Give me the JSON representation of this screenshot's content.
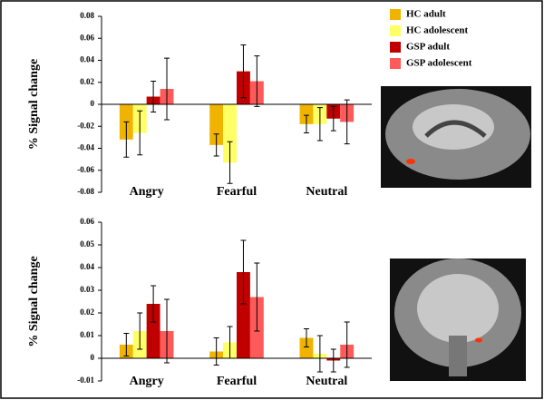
{
  "chart_data": [
    {
      "type": "bar",
      "ylabel": "% Signal change",
      "categories": [
        "Angry",
        "Fearful",
        "Neutral"
      ],
      "ylim": [
        -0.08,
        0.08
      ],
      "yticks": [
        -0.08,
        -0.06,
        -0.04,
        -0.02,
        0,
        0.02,
        0.04,
        0.06,
        0.08
      ],
      "legend": "top-right",
      "series": [
        {
          "name": "HC adult",
          "color": "#f0b400",
          "values": [
            -0.032,
            -0.037,
            -0.018
          ],
          "errors": [
            0.016,
            0.01,
            0.008
          ]
        },
        {
          "name": "HC adolescent",
          "color": "#ffff66",
          "values": [
            -0.026,
            -0.053,
            -0.018
          ],
          "errors": [
            0.02,
            0.019,
            0.015
          ]
        },
        {
          "name": "GSP adult",
          "color": "#c00000",
          "values": [
            0.007,
            0.03,
            -0.013
          ],
          "errors": [
            0.014,
            0.024,
            0.011
          ]
        },
        {
          "name": "GSP adolescent",
          "color": "#ff5a5a",
          "values": [
            0.014,
            0.021,
            -0.016
          ],
          "errors": [
            0.028,
            0.023,
            0.02
          ]
        }
      ]
    },
    {
      "type": "bar",
      "ylabel": "% Signal change",
      "categories": [
        "Angry",
        "Fearful",
        "Neutral"
      ],
      "ylim": [
        -0.01,
        0.06
      ],
      "yticks": [
        -0.01,
        0,
        0.01,
        0.02,
        0.03,
        0.04,
        0.05,
        0.06
      ],
      "series": [
        {
          "color": "#f0b400",
          "values": [
            0.006,
            0.003,
            0.009
          ],
          "errors": [
            0.005,
            0.006,
            0.004
          ]
        },
        {
          "color": "#ffff66",
          "values": [
            0.012,
            0.007,
            0.002
          ],
          "errors": [
            0.008,
            0.007,
            0.008
          ]
        },
        {
          "color": "#c00000",
          "values": [
            0.024,
            0.038,
            -0.001
          ],
          "errors": [
            0.008,
            0.014,
            0.005
          ]
        },
        {
          "color": "#ff5a5a",
          "values": [
            0.012,
            0.027,
            0.006
          ],
          "errors": [
            0.014,
            0.015,
            0.01
          ]
        }
      ]
    }
  ]
}
